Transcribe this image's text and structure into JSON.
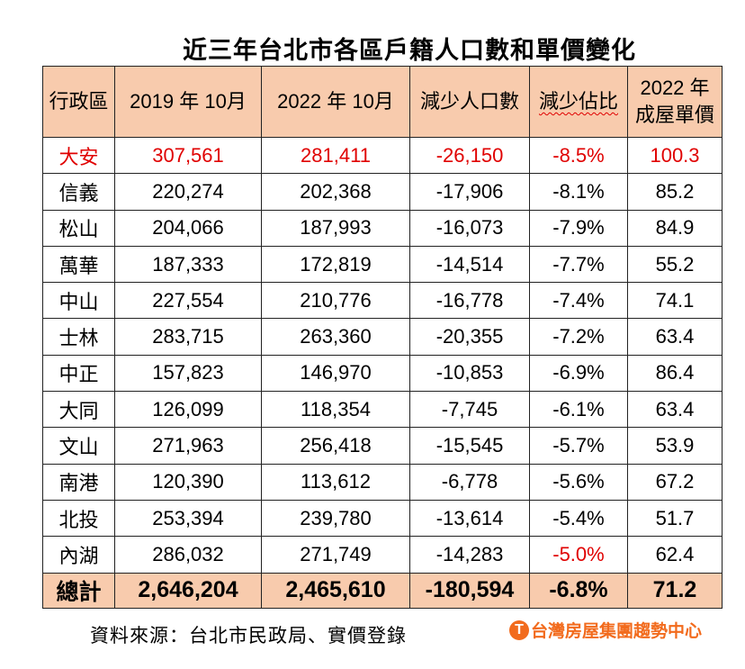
{
  "title": "近三年台北市各區戶籍人口數和單價變化",
  "chart_data": {
    "type": "table",
    "title": "近三年台北市各區戶籍人口數和單價變化",
    "columns": [
      "行政區",
      "2019 年 10月",
      "2022 年 10月",
      "減少人口數",
      "減少佔比",
      "2022 年 成屋單價"
    ],
    "header_line2": "成屋單價",
    "header_line1": "2022 年",
    "rows": [
      [
        "大安",
        "307,561",
        "281,411",
        "-26,150",
        "-8.5%",
        "100.3"
      ],
      [
        "信義",
        "220,274",
        "202,368",
        "-17,906",
        "-8.1%",
        "85.2"
      ],
      [
        "松山",
        "204,066",
        "187,993",
        "-16,073",
        "-7.9%",
        "84.9"
      ],
      [
        "萬華",
        "187,333",
        "172,819",
        "-14,514",
        "-7.7%",
        "55.2"
      ],
      [
        "中山",
        "227,554",
        "210,776",
        "-16,778",
        "-7.4%",
        "74.1"
      ],
      [
        "士林",
        "283,715",
        "263,360",
        "-20,355",
        "-7.2%",
        "63.4"
      ],
      [
        "中正",
        "157,823",
        "146,970",
        "-10,853",
        "-6.9%",
        "86.4"
      ],
      [
        "大同",
        "126,099",
        "118,354",
        "-7,745",
        "-6.1%",
        "63.4"
      ],
      [
        "文山",
        "271,963",
        "256,418",
        "-15,545",
        "-5.7%",
        "53.9"
      ],
      [
        "南港",
        "120,390",
        "113,612",
        "-6,778",
        "-5.6%",
        "67.2"
      ],
      [
        "北投",
        "253,394",
        "239,780",
        "-13,614",
        "-5.4%",
        "51.7"
      ],
      [
        "內湖",
        "286,032",
        "271,749",
        "-14,283",
        "-5.0%",
        "62.4"
      ]
    ],
    "total": [
      "總計",
      "2,646,204",
      "2,465,610",
      "-180,594",
      "-6.8%",
      "71.2"
    ],
    "highlight_row": 0,
    "highlight_color": "#e00000",
    "header_color": "#f8cbad"
  },
  "source": "資料來源：台北市民政局、實價登錄",
  "logo": {
    "mark": "T",
    "text": "台灣房屋集團趨勢中心",
    "color": "#f26b1d"
  }
}
